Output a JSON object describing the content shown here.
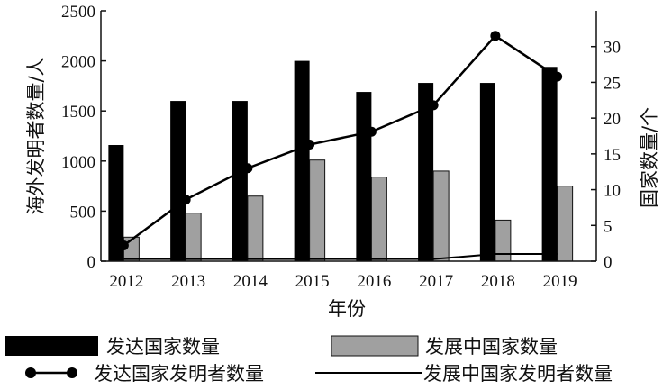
{
  "chart_data": {
    "type": "bar",
    "categories": [
      "2012",
      "2013",
      "2014",
      "2015",
      "2016",
      "2017",
      "2018",
      "2019"
    ],
    "xlabel": "年份",
    "ylabel_left": "海外发明者数量/人",
    "ylabel_right": "国家数量/个",
    "ylim_left": [
      0,
      2500
    ],
    "ylim_right": [
      0,
      35
    ],
    "yticks_left": [
      0,
      500,
      1000,
      1500,
      2000,
      2500
    ],
    "yticks_right": [
      0,
      5,
      10,
      15,
      20,
      25,
      30
    ],
    "grid": false,
    "legend_position": "bottom",
    "series": [
      {
        "name": "发达国家数量",
        "kind": "bar",
        "axis": "left",
        "color": "#000000",
        "values": [
          1160,
          1600,
          1600,
          2000,
          1690,
          1780,
          1780,
          1940
        ]
      },
      {
        "name": "发展中国家数量",
        "kind": "bar",
        "axis": "left",
        "color": "#a0a0a0",
        "values": [
          240,
          480,
          650,
          1010,
          840,
          900,
          410,
          750
        ]
      },
      {
        "name": "发达国家发明者数量",
        "kind": "line-marker",
        "axis": "right",
        "color": "#000000",
        "values": [
          2.2,
          8.6,
          13.0,
          16.3,
          18.1,
          21.8,
          31.5,
          25.8
        ]
      },
      {
        "name": "发展中国家发明者数量",
        "kind": "line",
        "axis": "right",
        "color": "#000000",
        "values": [
          0.3,
          0.3,
          0.3,
          0.3,
          0.3,
          0.3,
          1.0,
          1.0
        ]
      }
    ]
  }
}
